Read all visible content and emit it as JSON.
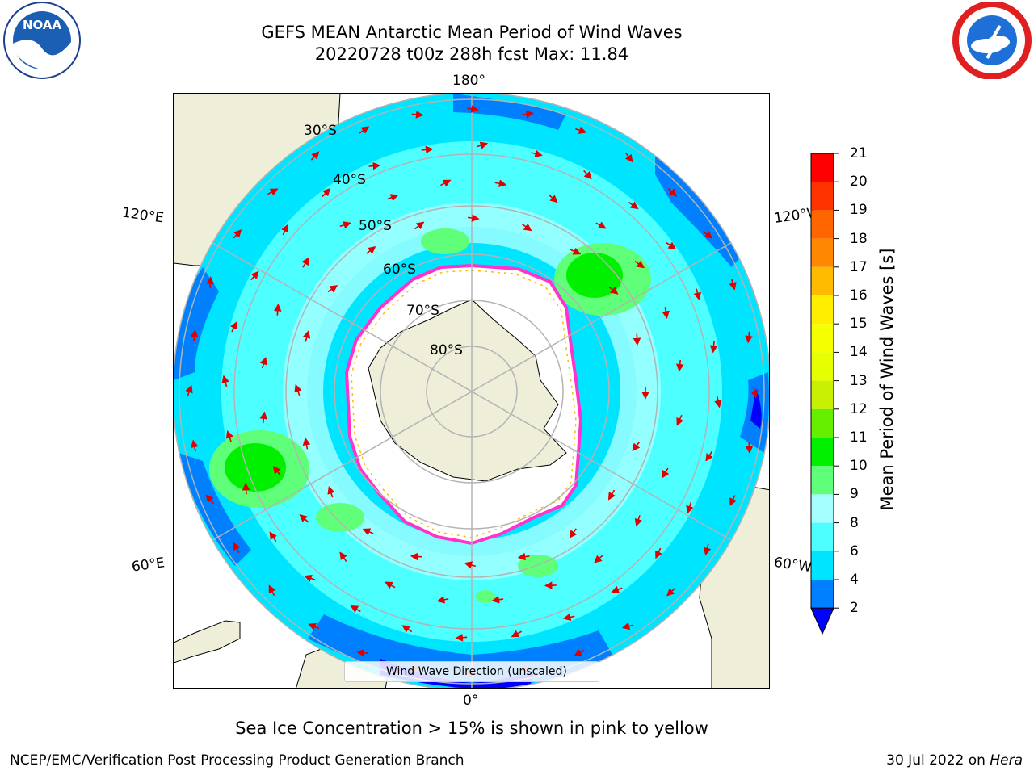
{
  "title": {
    "line1": "GEFS MEAN Antarctic Mean Period of Wind Waves",
    "line2": "20220728 t00z 288h fcst   Max: 11.84"
  },
  "map": {
    "projection": "south-polar-stereographic",
    "longitude_labels": {
      "top": "180°",
      "bottom": "0°",
      "left_upper": "120°E",
      "left_lower": "60°E",
      "right_upper": "120°W",
      "right_lower": "60°W"
    },
    "latitude_labels": [
      "30°S",
      "40°S",
      "50°S",
      "60°S",
      "70°S",
      "80°S"
    ],
    "colors": {
      "land": "#efeed8",
      "sea_ice": "#ffffff",
      "ice_edge": "#ff33cc",
      "gridline": "#b3b3b3",
      "arrow": "#e00000"
    },
    "legend_label": "Wind Wave Direction (unscaled)"
  },
  "colorbar": {
    "label": "Mean Period of Wind Waves [s]",
    "ticks": [
      "2",
      "4",
      "6",
      "8",
      "9",
      "10",
      "11",
      "12",
      "13",
      "14",
      "15",
      "16",
      "17",
      "18",
      "19",
      "20",
      "21"
    ],
    "bins": [
      {
        "from": 2,
        "to": 4,
        "color": "#0080ff"
      },
      {
        "from": 4,
        "to": 6,
        "color": "#00e5ff"
      },
      {
        "from": 6,
        "to": 8,
        "color": "#4dffff"
      },
      {
        "from": 8,
        "to": 9,
        "color": "#a6ffff"
      },
      {
        "from": 9,
        "to": 10,
        "color": "#5fff7a"
      },
      {
        "from": 10,
        "to": 11,
        "color": "#00f000"
      },
      {
        "from": 11,
        "to": 12,
        "color": "#66f000"
      },
      {
        "from": 12,
        "to": 13,
        "color": "#c8f000"
      },
      {
        "from": 13,
        "to": 14,
        "color": "#e6ff00"
      },
      {
        "from": 14,
        "to": 15,
        "color": "#f5ff00"
      },
      {
        "from": 15,
        "to": 16,
        "color": "#ffee00"
      },
      {
        "from": 16,
        "to": 17,
        "color": "#ffbb00"
      },
      {
        "from": 17,
        "to": 18,
        "color": "#ff8800"
      },
      {
        "from": 18,
        "to": 19,
        "color": "#ff6600"
      },
      {
        "from": 19,
        "to": 20,
        "color": "#ff3300"
      },
      {
        "from": 20,
        "to": 21,
        "color": "#ff0000"
      }
    ],
    "under_color": "#0000ff"
  },
  "caption": "Sea Ice Concentration > 15% is shown in pink to yellow",
  "footer": {
    "left": "NCEP/EMC/Verification Post Processing Product Generation Branch",
    "right_prefix": "30 Jul 2022 on ",
    "right_machine": "Hera"
  },
  "logos": {
    "left": "NOAA",
    "right": "NATIONAL WEATHER SERVICE"
  }
}
